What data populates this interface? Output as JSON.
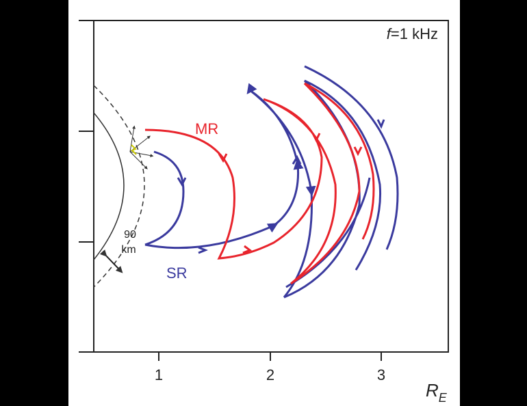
{
  "annotation": {
    "variable": "f",
    "text": "=1 kHz"
  },
  "x_axis": {
    "ticks": [
      "1",
      "2",
      "3"
    ],
    "label": {
      "symbol": "R",
      "subscript": "E"
    }
  },
  "rays": {
    "mr": "MR",
    "sr": "SR"
  },
  "altitude": {
    "value": "90",
    "unit": "km"
  }
}
